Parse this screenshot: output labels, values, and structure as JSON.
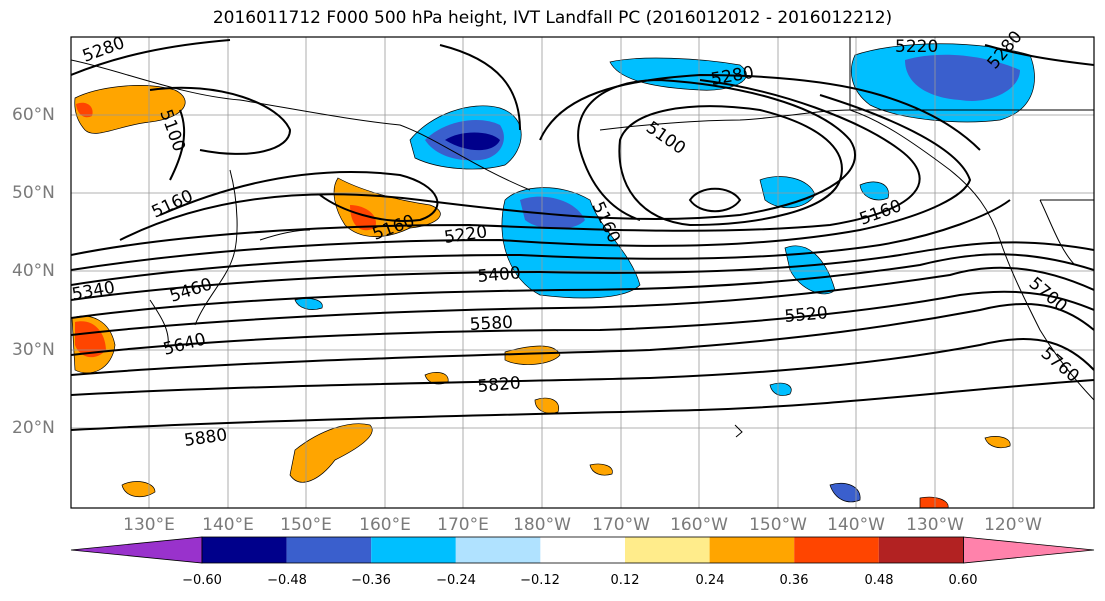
{
  "title": "2016011712 F000 500 hPa height, IVT Landfall PC (2016012012 - 2016012212)",
  "lon_labels": [
    "130°E",
    "140°E",
    "150°E",
    "160°E",
    "170°E",
    "180°W",
    "170°W",
    "160°W",
    "150°W",
    "140°W",
    "130°W",
    "120°W"
  ],
  "lat_labels": [
    "60°N",
    "50°N",
    "40°N",
    "30°N",
    "20°N"
  ],
  "contour_labels": [
    "5280",
    "5100",
    "5160",
    "5340",
    "5460",
    "5640",
    "5880",
    "5220",
    "5160",
    "5400",
    "5580",
    "5820",
    "5280",
    "5100",
    "5160",
    "5160",
    "5220",
    "5280",
    "5520",
    "5700",
    "5760"
  ],
  "colorbar": {
    "ticks": [
      "−0.60",
      "−0.48",
      "−0.36",
      "−0.24",
      "−0.12",
      "0.12",
      "0.24",
      "0.36",
      "0.48",
      "0.60"
    ],
    "colors": [
      "#9932cc",
      "#00008b",
      "#3a5fcd",
      "#00bfff",
      "#b0e2ff",
      "#ffffff",
      "#ffec8b",
      "#ffa500",
      "#ff4500",
      "#b22222",
      "#ff82ab"
    ]
  },
  "colors": {
    "strong_neg": "#00008b",
    "mid_neg": "#3a5fcd",
    "neg": "#00bfff",
    "pos": "#ffa500",
    "strong_pos": "#ff4500",
    "weak_pos": "#ffec8b"
  }
}
